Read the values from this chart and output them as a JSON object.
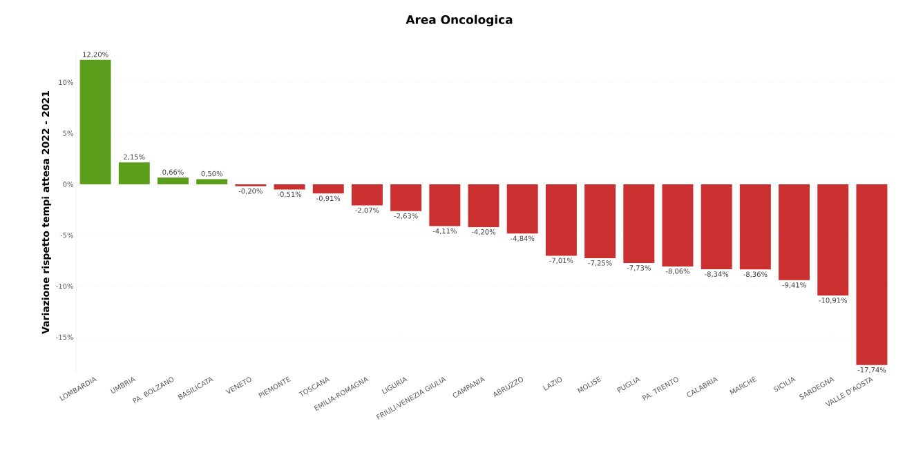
{
  "chart_data": {
    "type": "bar",
    "title": "Area Oncologica",
    "ylabel": "Variazione rispetto tempi attesa 2022 - 2021",
    "categories": [
      "LOMBARDIA",
      "UMBRIA",
      "PA. BOLZANO",
      "BASILICATA",
      "VENETO",
      "PIEMONTE",
      "TOSCANA",
      "EMILIA-ROMAGNA",
      "LIGURIA",
      "FRIULI-VENEZIA GIULIA",
      "CAMPANIA",
      "ABRUZZO",
      "LAZIO",
      "MOLISE",
      "PUGLIA",
      "PA. TRENTO",
      "CALABRIA",
      "MARCHE",
      "SICILIA",
      "SARDEGNA",
      "VALLE D'AOSTA"
    ],
    "values": [
      12.2,
      2.15,
      0.66,
      0.5,
      -0.2,
      -0.51,
      -0.91,
      -2.07,
      -2.63,
      -4.11,
      -4.2,
      -4.84,
      -7.01,
      -7.25,
      -7.73,
      -8.06,
      -8.34,
      -8.36,
      -9.41,
      -10.91,
      -17.74
    ],
    "value_labels": [
      "12,20%",
      "2,15%",
      "0,66%",
      "0,50%",
      "-0,20%",
      "-0,51%",
      "-0,91%",
      "-2,07%",
      "-2,63%",
      "-4,11%",
      "-4,20%",
      "-4,84%",
      "-7,01%",
      "-7,25%",
      "-7,73%",
      "-8,06%",
      "-8,34%",
      "-8,36%",
      "-9,41%",
      "-10,91%",
      "-17,74%"
    ],
    "colors": [
      "#5a9e1b",
      "#5a9e1b",
      "#5a9e1b",
      "#5a9e1b",
      "#c9302f",
      "#c9302f",
      "#c9302f",
      "#c9302f",
      "#c9302f",
      "#c9302f",
      "#c9302f",
      "#c9302f",
      "#c9302f",
      "#c9302f",
      "#c9302f",
      "#c9302f",
      "#c9302f",
      "#c9302f",
      "#c9302f",
      "#c9302f",
      "#c9302f"
    ],
    "ylim": [
      -18.5,
      13
    ],
    "yticks": [
      {
        "value": -15,
        "label": "-15%"
      },
      {
        "value": -10,
        "label": "-10%"
      },
      {
        "value": -5,
        "label": "-5%"
      },
      {
        "value": 0,
        "label": "0%"
      },
      {
        "value": 5,
        "label": "5%"
      },
      {
        "value": 10,
        "label": "10%"
      }
    ],
    "grid": "y"
  }
}
